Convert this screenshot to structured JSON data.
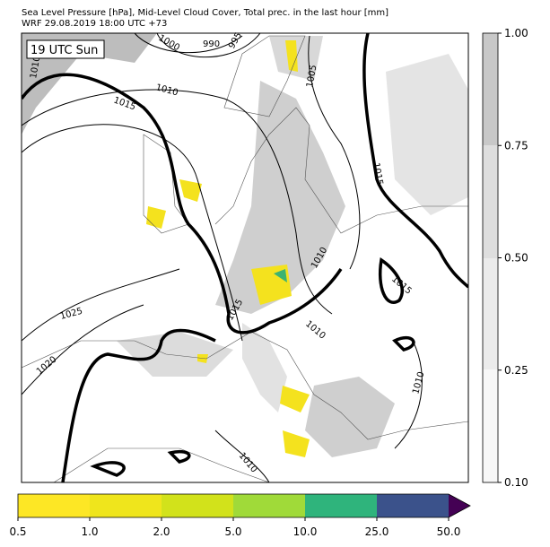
{
  "header": {
    "title_line1": "Sea Level Pressure [hPa], Mid-Level Cloud Cover, Total prec. in the last hour [mm]",
    "title_line2": "WRF 29.08.2019 18:00 UTC +73"
  },
  "map": {
    "time_label": "19 UTC Sun",
    "contour_labels": [
      "1010",
      "1000",
      "990",
      "995",
      "1005",
      "1010",
      "1015",
      "1015",
      "1010",
      "1015",
      "1015",
      "1025",
      "1020",
      "1010",
      "1010",
      "1010"
    ]
  },
  "cloud_colorbar": {
    "ticks": [
      "0.10",
      "0.25",
      "0.50",
      "0.75",
      "1.00"
    ]
  },
  "precip_colorbar": {
    "ticks": [
      "0.5",
      "1.0",
      "2.0",
      "5.0",
      "10.0",
      "25.0",
      "50.0"
    ]
  }
}
